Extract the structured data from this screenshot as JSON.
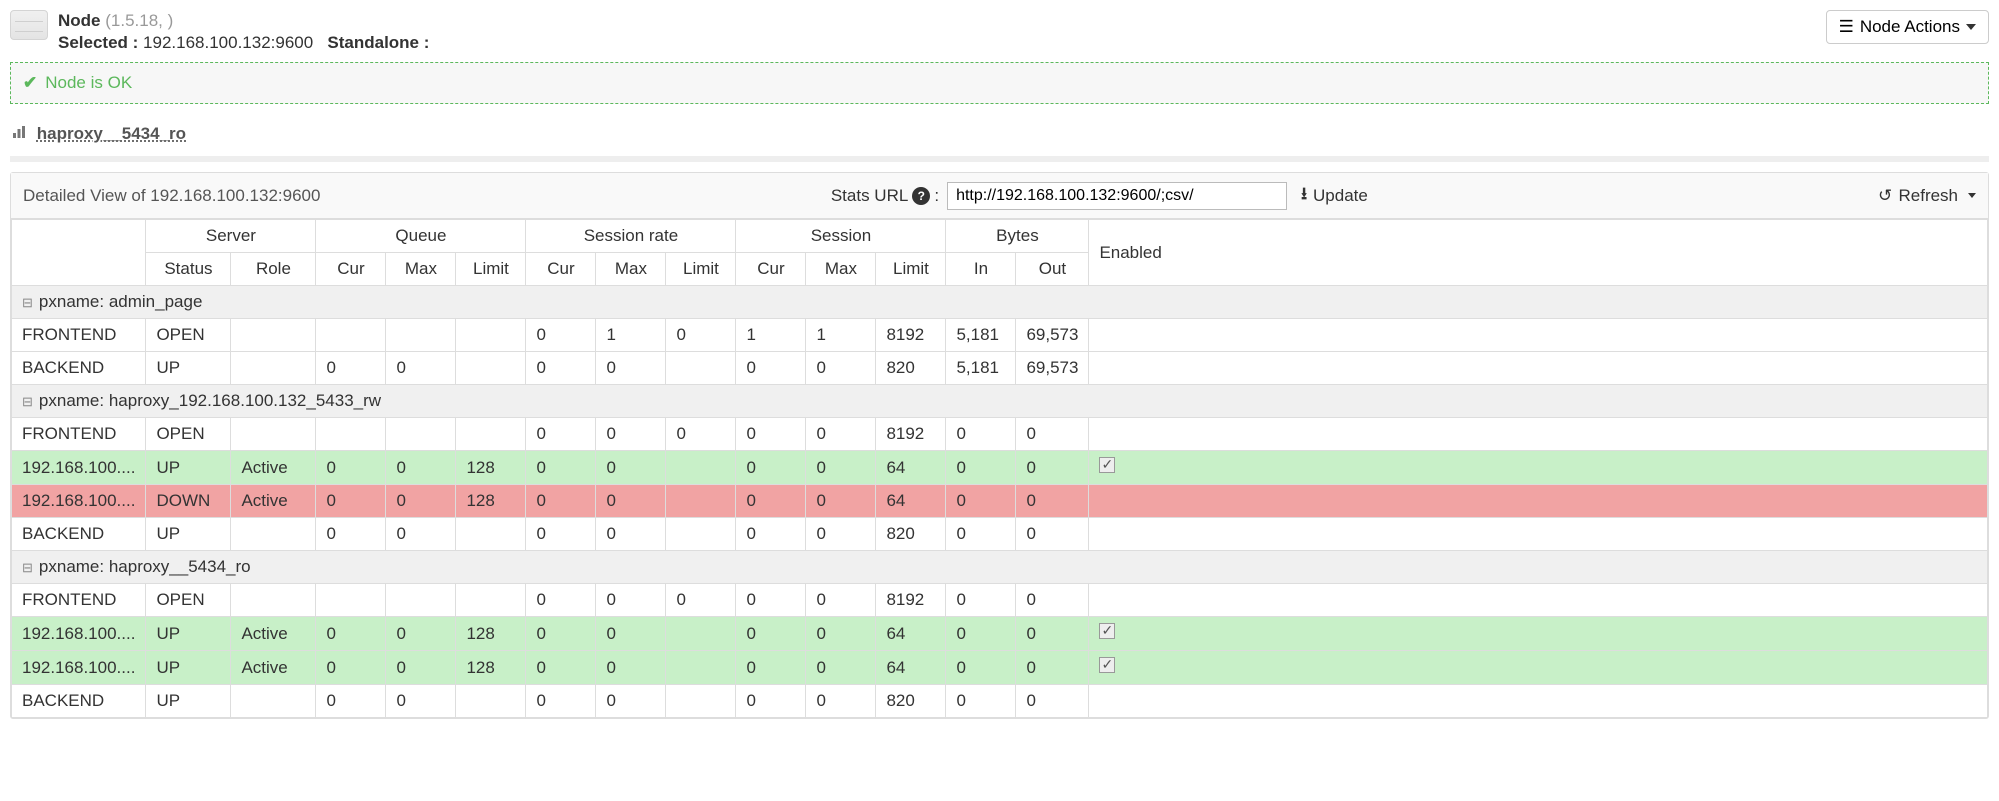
{
  "header": {
    "node_label": "Node",
    "version": "(1.5.18, )",
    "selected_label": "Selected :",
    "selected_value": "192.168.100.132:9600",
    "mode_label": "Standalone :",
    "actions_button": "Node Actions"
  },
  "status_banner": {
    "text": "Node is OK"
  },
  "breadcrumb": {
    "item": "haproxy__5434_ro"
  },
  "panel": {
    "title_prefix": "Detailed View of",
    "title_host": "192.168.100.132:9600",
    "stats_label": "Stats URL",
    "url_value": "http://192.168.100.132:9600/;csv/",
    "update_label": "Update",
    "refresh_label": "Refresh"
  },
  "columns": {
    "server": "Server",
    "queue": "Queue",
    "session_rate": "Session rate",
    "session": "Session",
    "bytes": "Bytes",
    "enabled": "Enabled",
    "status": "Status",
    "role": "Role",
    "cur": "Cur",
    "max": "Max",
    "limit": "Limit",
    "in": "In",
    "out": "Out"
  },
  "groups": [
    {
      "label": "pxname: admin_page",
      "rows": [
        {
          "name": "FRONTEND",
          "status": "OPEN",
          "role": "",
          "q_cur": "",
          "q_max": "",
          "q_lim": "",
          "sr_cur": "0",
          "sr_max": "1",
          "sr_lim": "0",
          "s_cur": "1",
          "s_max": "1",
          "s_lim": "8192",
          "b_in": "5,181",
          "b_out": "69,573",
          "enabled": "",
          "state": ""
        },
        {
          "name": "BACKEND",
          "status": "UP",
          "role": "",
          "q_cur": "0",
          "q_max": "0",
          "q_lim": "",
          "sr_cur": "0",
          "sr_max": "0",
          "sr_lim": "",
          "s_cur": "0",
          "s_max": "0",
          "s_lim": "820",
          "b_in": "5,181",
          "b_out": "69,573",
          "enabled": "",
          "state": ""
        }
      ]
    },
    {
      "label": "pxname: haproxy_192.168.100.132_5433_rw",
      "rows": [
        {
          "name": "FRONTEND",
          "status": "OPEN",
          "role": "",
          "q_cur": "",
          "q_max": "",
          "q_lim": "",
          "sr_cur": "0",
          "sr_max": "0",
          "sr_lim": "0",
          "s_cur": "0",
          "s_max": "0",
          "s_lim": "8192",
          "b_in": "0",
          "b_out": "0",
          "enabled": "",
          "state": ""
        },
        {
          "name": "192.168.100....",
          "status": "UP",
          "role": "Active",
          "q_cur": "0",
          "q_max": "0",
          "q_lim": "128",
          "sr_cur": "0",
          "sr_max": "0",
          "sr_lim": "",
          "s_cur": "0",
          "s_max": "0",
          "s_lim": "64",
          "b_in": "0",
          "b_out": "0",
          "enabled": "yes",
          "state": "up"
        },
        {
          "name": "192.168.100....",
          "status": "DOWN",
          "role": "Active",
          "q_cur": "0",
          "q_max": "0",
          "q_lim": "128",
          "sr_cur": "0",
          "sr_max": "0",
          "sr_lim": "",
          "s_cur": "0",
          "s_max": "0",
          "s_lim": "64",
          "b_in": "0",
          "b_out": "0",
          "enabled": "",
          "state": "down"
        },
        {
          "name": "BACKEND",
          "status": "UP",
          "role": "",
          "q_cur": "0",
          "q_max": "0",
          "q_lim": "",
          "sr_cur": "0",
          "sr_max": "0",
          "sr_lim": "",
          "s_cur": "0",
          "s_max": "0",
          "s_lim": "820",
          "b_in": "0",
          "b_out": "0",
          "enabled": "",
          "state": ""
        }
      ]
    },
    {
      "label": "pxname: haproxy__5434_ro",
      "rows": [
        {
          "name": "FRONTEND",
          "status": "OPEN",
          "role": "",
          "q_cur": "",
          "q_max": "",
          "q_lim": "",
          "sr_cur": "0",
          "sr_max": "0",
          "sr_lim": "0",
          "s_cur": "0",
          "s_max": "0",
          "s_lim": "8192",
          "b_in": "0",
          "b_out": "0",
          "enabled": "",
          "state": ""
        },
        {
          "name": "192.168.100....",
          "status": "UP",
          "role": "Active",
          "q_cur": "0",
          "q_max": "0",
          "q_lim": "128",
          "sr_cur": "0",
          "sr_max": "0",
          "sr_lim": "",
          "s_cur": "0",
          "s_max": "0",
          "s_lim": "64",
          "b_in": "0",
          "b_out": "0",
          "enabled": "yes",
          "state": "up"
        },
        {
          "name": "192.168.100....",
          "status": "UP",
          "role": "Active",
          "q_cur": "0",
          "q_max": "0",
          "q_lim": "128",
          "sr_cur": "0",
          "sr_max": "0",
          "sr_lim": "",
          "s_cur": "0",
          "s_max": "0",
          "s_lim": "64",
          "b_in": "0",
          "b_out": "0",
          "enabled": "yes",
          "state": "up"
        },
        {
          "name": "BACKEND",
          "status": "UP",
          "role": "",
          "q_cur": "0",
          "q_max": "0",
          "q_lim": "",
          "sr_cur": "0",
          "sr_max": "0",
          "sr_lim": "",
          "s_cur": "0",
          "s_max": "0",
          "s_lim": "820",
          "b_in": "0",
          "b_out": "0",
          "enabled": "",
          "state": ""
        }
      ]
    }
  ],
  "colors": {
    "row_up_bg": "#c8f0c8",
    "row_down_bg": "#f1a3a3",
    "banner_border": "#5cb85c"
  }
}
